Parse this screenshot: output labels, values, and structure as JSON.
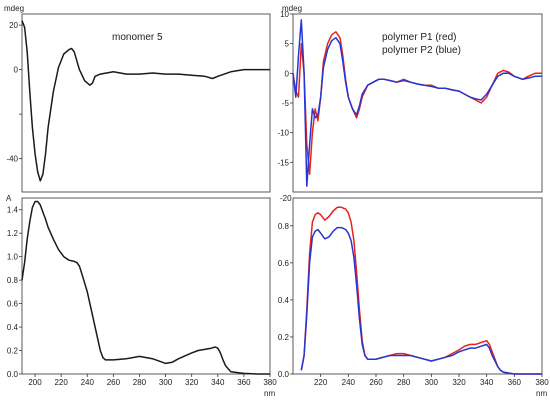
{
  "chart_data": [
    {
      "type": "line",
      "panel": "top-left",
      "ylabel": "mdeg",
      "xlabel": "",
      "annotation": "monomer 5",
      "xlim": [
        190,
        380
      ],
      "ylim": [
        -55,
        25
      ],
      "yticks": [
        20,
        0,
        -20,
        -40
      ],
      "ytick_labels": [
        "20",
        "0",
        "",
        "-40"
      ],
      "grid": false,
      "series": [
        {
          "name": "",
          "color": "#1a1a1a",
          "x": [
            190,
            192,
            194,
            196,
            198,
            200,
            202,
            204,
            206,
            208,
            210,
            214,
            218,
            222,
            226,
            228,
            230,
            232,
            234,
            238,
            242,
            244,
            246,
            250,
            260,
            270,
            280,
            290,
            300,
            310,
            320,
            330,
            336,
            340,
            350,
            360,
            370,
            380
          ],
          "y": [
            22,
            19,
            8,
            -10,
            -26,
            -38,
            -46,
            -50,
            -47,
            -38,
            -26,
            -10,
            1,
            7,
            9,
            9.5,
            8,
            4,
            0,
            -5,
            -7,
            -6,
            -3,
            -2,
            -1,
            -2,
            -2,
            -1.5,
            -2,
            -2,
            -2.5,
            -3,
            -4,
            -3,
            -1,
            0,
            0,
            0
          ]
        }
      ]
    },
    {
      "type": "line",
      "panel": "top-right",
      "ylabel": "mdeg",
      "xlabel": "",
      "annotations": [
        "polymer P1 (red)",
        "polymer P2 (blue)"
      ],
      "xlim": [
        200,
        380
      ],
      "ylim": [
        -20,
        10
      ],
      "yticks": [
        10,
        5,
        0,
        -5,
        -10,
        -15
      ],
      "ytick_labels": [
        "10",
        "5",
        "0",
        "-5",
        "-10",
        "-15"
      ],
      "grid": false,
      "series": [
        {
          "name": "polymer P1",
          "color": "#e8231c",
          "x": [
            200,
            202,
            204,
            206,
            208,
            210,
            212,
            214,
            216,
            218,
            220,
            222,
            225,
            228,
            231,
            234,
            236,
            238,
            240,
            243,
            246,
            248,
            250,
            254,
            258,
            262,
            266,
            270,
            275,
            280,
            285,
            290,
            295,
            300,
            305,
            310,
            315,
            320,
            324,
            328,
            332,
            336,
            340,
            344,
            348,
            352,
            356,
            360,
            366,
            370,
            375,
            380
          ],
          "y": [
            0,
            -3,
            -4,
            5,
            0,
            -12,
            -17,
            -10,
            -6,
            -8,
            -4,
            2,
            5,
            6.5,
            7,
            6,
            3,
            -1,
            -4,
            -6,
            -7.5,
            -6,
            -4,
            -2,
            -1.5,
            -1,
            -1,
            -1.2,
            -1.5,
            -1,
            -1.5,
            -1.8,
            -2,
            -2,
            -2.5,
            -2.5,
            -2.8,
            -3,
            -3.5,
            -4,
            -4.5,
            -5,
            -4,
            -2,
            0,
            0.5,
            0.2,
            -0.5,
            -1,
            -0.5,
            0,
            0
          ]
        },
        {
          "name": "polymer P2",
          "color": "#2436d4",
          "x": [
            200,
            202,
            204,
            206,
            208,
            210,
            212,
            214,
            216,
            218,
            220,
            222,
            225,
            228,
            231,
            234,
            236,
            238,
            240,
            243,
            246,
            248,
            250,
            254,
            258,
            262,
            266,
            270,
            275,
            280,
            285,
            290,
            295,
            300,
            305,
            310,
            315,
            320,
            324,
            328,
            332,
            336,
            340,
            344,
            348,
            352,
            356,
            360,
            366,
            370,
            375,
            380
          ],
          "y": [
            0,
            -4,
            3,
            9,
            0,
            -19,
            -12,
            -6,
            -7.5,
            -7,
            -4,
            1,
            4,
            5.5,
            6,
            5,
            2,
            -1.5,
            -4,
            -6,
            -7,
            -5.5,
            -3.5,
            -2,
            -1.5,
            -1,
            -1,
            -1.2,
            -1.5,
            -1.2,
            -1.5,
            -1.8,
            -2,
            -2.2,
            -2.5,
            -2.5,
            -2.8,
            -3,
            -3.5,
            -4,
            -4.3,
            -4.5,
            -3.5,
            -2,
            -0.5,
            0,
            0,
            -0.5,
            -1,
            -0.8,
            -0.5,
            -0.5
          ]
        }
      ]
    },
    {
      "type": "line",
      "panel": "bottom-left",
      "ylabel": "A",
      "xlabel": "nm",
      "xlim": [
        190,
        380
      ],
      "ylim": [
        0,
        1.5
      ],
      "xticks": [
        200,
        220,
        240,
        260,
        280,
        300,
        320,
        340,
        360,
        380
      ],
      "yticks": [
        0,
        0.2,
        0.4,
        0.6,
        0.8,
        1.0,
        1.2,
        1.4
      ],
      "ytick_labels": [
        "0.0",
        "0.2",
        "0.4",
        "0.6",
        "0.8",
        "1.0",
        "1.2",
        "1.4"
      ],
      "grid": false,
      "series": [
        {
          "name": "",
          "color": "#1a1a1a",
          "x": [
            190,
            192,
            194,
            196,
            198,
            200,
            202,
            204,
            206,
            208,
            210,
            214,
            218,
            222,
            226,
            230,
            232,
            234,
            236,
            240,
            244,
            248,
            250,
            252,
            254,
            256,
            260,
            270,
            280,
            290,
            295,
            300,
            305,
            310,
            320,
            325,
            330,
            335,
            338,
            340,
            342,
            344,
            346,
            350,
            356,
            360,
            370,
            380
          ],
          "y": [
            0.8,
            0.95,
            1.15,
            1.3,
            1.42,
            1.47,
            1.47,
            1.44,
            1.38,
            1.32,
            1.25,
            1.15,
            1.06,
            1.0,
            0.97,
            0.96,
            0.95,
            0.92,
            0.85,
            0.7,
            0.5,
            0.3,
            0.2,
            0.14,
            0.12,
            0.12,
            0.12,
            0.13,
            0.15,
            0.13,
            0.11,
            0.09,
            0.1,
            0.13,
            0.18,
            0.2,
            0.21,
            0.22,
            0.23,
            0.22,
            0.18,
            0.12,
            0.07,
            0.02,
            0.01,
            0.005,
            0,
            0
          ]
        }
      ]
    },
    {
      "type": "line",
      "panel": "bottom-right",
      "ylabel": "-20",
      "xlabel": "nm",
      "xlim": [
        200,
        380
      ],
      "ylim": [
        0,
        0.95
      ],
      "xticks": [
        220,
        240,
        260,
        280,
        300,
        320,
        340,
        360,
        380
      ],
      "yticks": [
        0,
        0.2,
        0.4,
        0.6,
        0.8
      ],
      "ytick_labels": [
        "0.0",
        "0.2",
        "0.4",
        "0.6",
        "0.8"
      ],
      "grid": false,
      "series": [
        {
          "name": "polymer P1",
          "color": "#e8231c",
          "x": [
            206,
            208,
            210,
            212,
            214,
            216,
            218,
            220,
            223,
            226,
            229,
            232,
            235,
            238,
            240,
            242,
            244,
            246,
            248,
            250,
            252,
            254,
            256,
            260,
            265,
            270,
            275,
            280,
            285,
            290,
            295,
            300,
            305,
            310,
            315,
            320,
            324,
            328,
            332,
            336,
            340,
            342,
            344,
            346,
            348,
            350,
            352,
            356,
            360,
            370,
            380
          ],
          "y": [
            0.02,
            0.1,
            0.35,
            0.65,
            0.82,
            0.86,
            0.87,
            0.86,
            0.83,
            0.85,
            0.88,
            0.9,
            0.9,
            0.89,
            0.87,
            0.82,
            0.72,
            0.55,
            0.35,
            0.18,
            0.1,
            0.08,
            0.08,
            0.08,
            0.09,
            0.1,
            0.11,
            0.11,
            0.1,
            0.09,
            0.08,
            0.07,
            0.08,
            0.09,
            0.11,
            0.13,
            0.15,
            0.16,
            0.16,
            0.17,
            0.18,
            0.16,
            0.12,
            0.08,
            0.04,
            0.02,
            0.01,
            0.005,
            0,
            0,
            0
          ]
        },
        {
          "name": "polymer P2",
          "color": "#2436d4",
          "x": [
            206,
            208,
            210,
            212,
            214,
            216,
            218,
            220,
            223,
            226,
            229,
            232,
            235,
            238,
            240,
            242,
            244,
            246,
            248,
            250,
            252,
            254,
            256,
            260,
            265,
            270,
            275,
            280,
            285,
            290,
            295,
            300,
            305,
            310,
            315,
            320,
            324,
            328,
            332,
            336,
            340,
            342,
            344,
            346,
            348,
            350,
            352,
            356,
            360,
            370,
            380
          ],
          "y": [
            0.02,
            0.1,
            0.32,
            0.6,
            0.74,
            0.77,
            0.78,
            0.76,
            0.73,
            0.74,
            0.77,
            0.79,
            0.79,
            0.78,
            0.76,
            0.72,
            0.63,
            0.48,
            0.3,
            0.16,
            0.1,
            0.08,
            0.08,
            0.08,
            0.09,
            0.1,
            0.1,
            0.1,
            0.1,
            0.09,
            0.08,
            0.07,
            0.08,
            0.09,
            0.1,
            0.12,
            0.13,
            0.14,
            0.14,
            0.15,
            0.16,
            0.14,
            0.1,
            0.07,
            0.04,
            0.02,
            0.01,
            0.005,
            0,
            0,
            0
          ]
        }
      ]
    }
  ]
}
